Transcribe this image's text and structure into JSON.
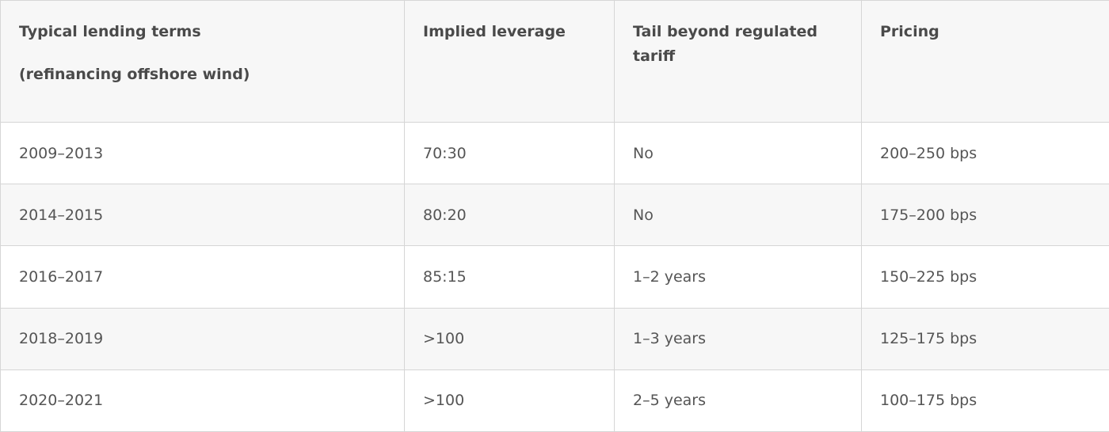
{
  "table": {
    "headers": {
      "col1_line1": "Typical lending terms",
      "col1_line2": "(refinancing offshore wind)",
      "col2": "Implied leverage",
      "col3": "Tail beyond regulated tariff",
      "col4": "Pricing"
    },
    "rows": [
      {
        "period": "2009–2013",
        "leverage": "70:30",
        "tail": "No",
        "pricing": "200–250 bps"
      },
      {
        "period": "2014–2015",
        "leverage": "80:20",
        "tail": "No",
        "pricing": "175–200 bps"
      },
      {
        "period": "2016–2017",
        "leverage": "85:15",
        "tail": "1–2 years",
        "pricing": "150–225 bps"
      },
      {
        "period": "2018–2019",
        "leverage": ">100",
        "tail": "1–3 years",
        "pricing": "125–175 bps"
      },
      {
        "period": "2020–2021",
        "leverage": ">100",
        "tail": "2–5 years",
        "pricing": "100–175 bps"
      }
    ]
  }
}
